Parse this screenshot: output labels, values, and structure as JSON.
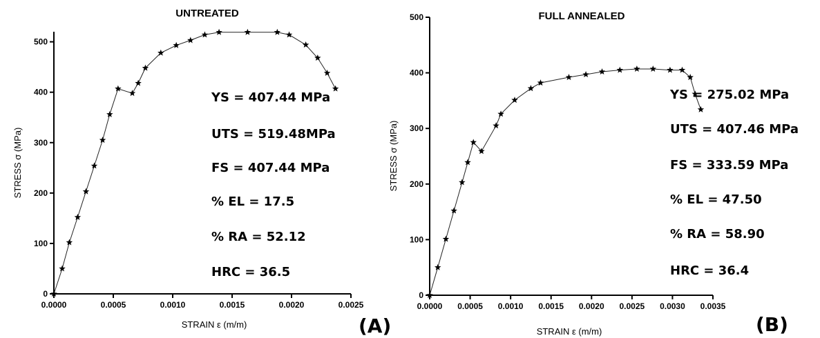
{
  "chart_data": [
    {
      "type": "line",
      "title": "UNTREATED",
      "xlabel": "STRAIN ε (m/m)",
      "ylabel": "STRESS σ (MPa)",
      "xlim": [
        0,
        0.0025
      ],
      "ylim": [
        0,
        520
      ],
      "x_ticks": [
        "0.0000",
        "0.0005",
        "0.0010",
        "0.0015",
        "0.0020",
        "0.0025"
      ],
      "y_ticks": [
        "0",
        "100",
        "200",
        "300",
        "400",
        "500"
      ],
      "grid": false,
      "marker": "star",
      "panel_label": "(A)",
      "properties": [
        "YS = 407.44 MPa",
        "UTS = 519.48MPa",
        "FS = 407.44 MPa",
        "% EL = 17.5",
        "% RA = 52.12",
        "HRC = 36.5"
      ],
      "series": [
        {
          "x": [
            0,
            7e-05,
            0.00013,
            0.0002,
            0.00027,
            0.00034,
            0.00041,
            0.00047,
            0.00054,
            0.00066,
            0.00071,
            0.00077,
            0.0009,
            0.00103,
            0.00115,
            0.00127,
            0.00139,
            0.00163,
            0.00188,
            0.00198,
            0.00212,
            0.00222,
            0.0023,
            0.00237
          ],
          "y": [
            0,
            50,
            102,
            152,
            203,
            254,
            305,
            356,
            407,
            398,
            418,
            448,
            478,
            493,
            503,
            514,
            519,
            519,
            519,
            514,
            494,
            468,
            438,
            407
          ]
        }
      ]
    },
    {
      "type": "line",
      "title": "FULL ANNEALED",
      "xlabel": "STRAIN ε (m/m)",
      "ylabel": "STRESS σ (MPa)",
      "xlim": [
        0,
        0.0035
      ],
      "ylim": [
        0,
        500
      ],
      "x_ticks": [
        "0.0000",
        "0.0005",
        "0.0010",
        "0.0015",
        "0.0020",
        "0.0025",
        "0.0030",
        "0.0035"
      ],
      "y_ticks": [
        "0",
        "100",
        "200",
        "300",
        "400",
        "500"
      ],
      "grid": false,
      "marker": "star",
      "panel_label": "(B)",
      "properties": [
        "YS = 275.02 MPa",
        "UTS = 407.46 MPa",
        "FS = 333.59 MPa",
        "% EL = 47.50",
        "% RA = 58.90",
        "HRC = 36.4"
      ],
      "series": [
        {
          "x": [
            0,
            0.0001,
            0.0002,
            0.0003,
            0.0004,
            0.00047,
            0.00054,
            0.00064,
            0.00082,
            0.00088,
            0.00105,
            0.00125,
            0.00137,
            0.00172,
            0.00193,
            0.00213,
            0.00235,
            0.00256,
            0.00276,
            0.00297,
            0.00312,
            0.00322,
            0.00328,
            0.00335
          ],
          "y": [
            0,
            50,
            101,
            152,
            203,
            239,
            275,
            259,
            305,
            326,
            351,
            372,
            382,
            392,
            397,
            402,
            405,
            407,
            407,
            405,
            405,
            392,
            362,
            334
          ]
        }
      ]
    }
  ]
}
